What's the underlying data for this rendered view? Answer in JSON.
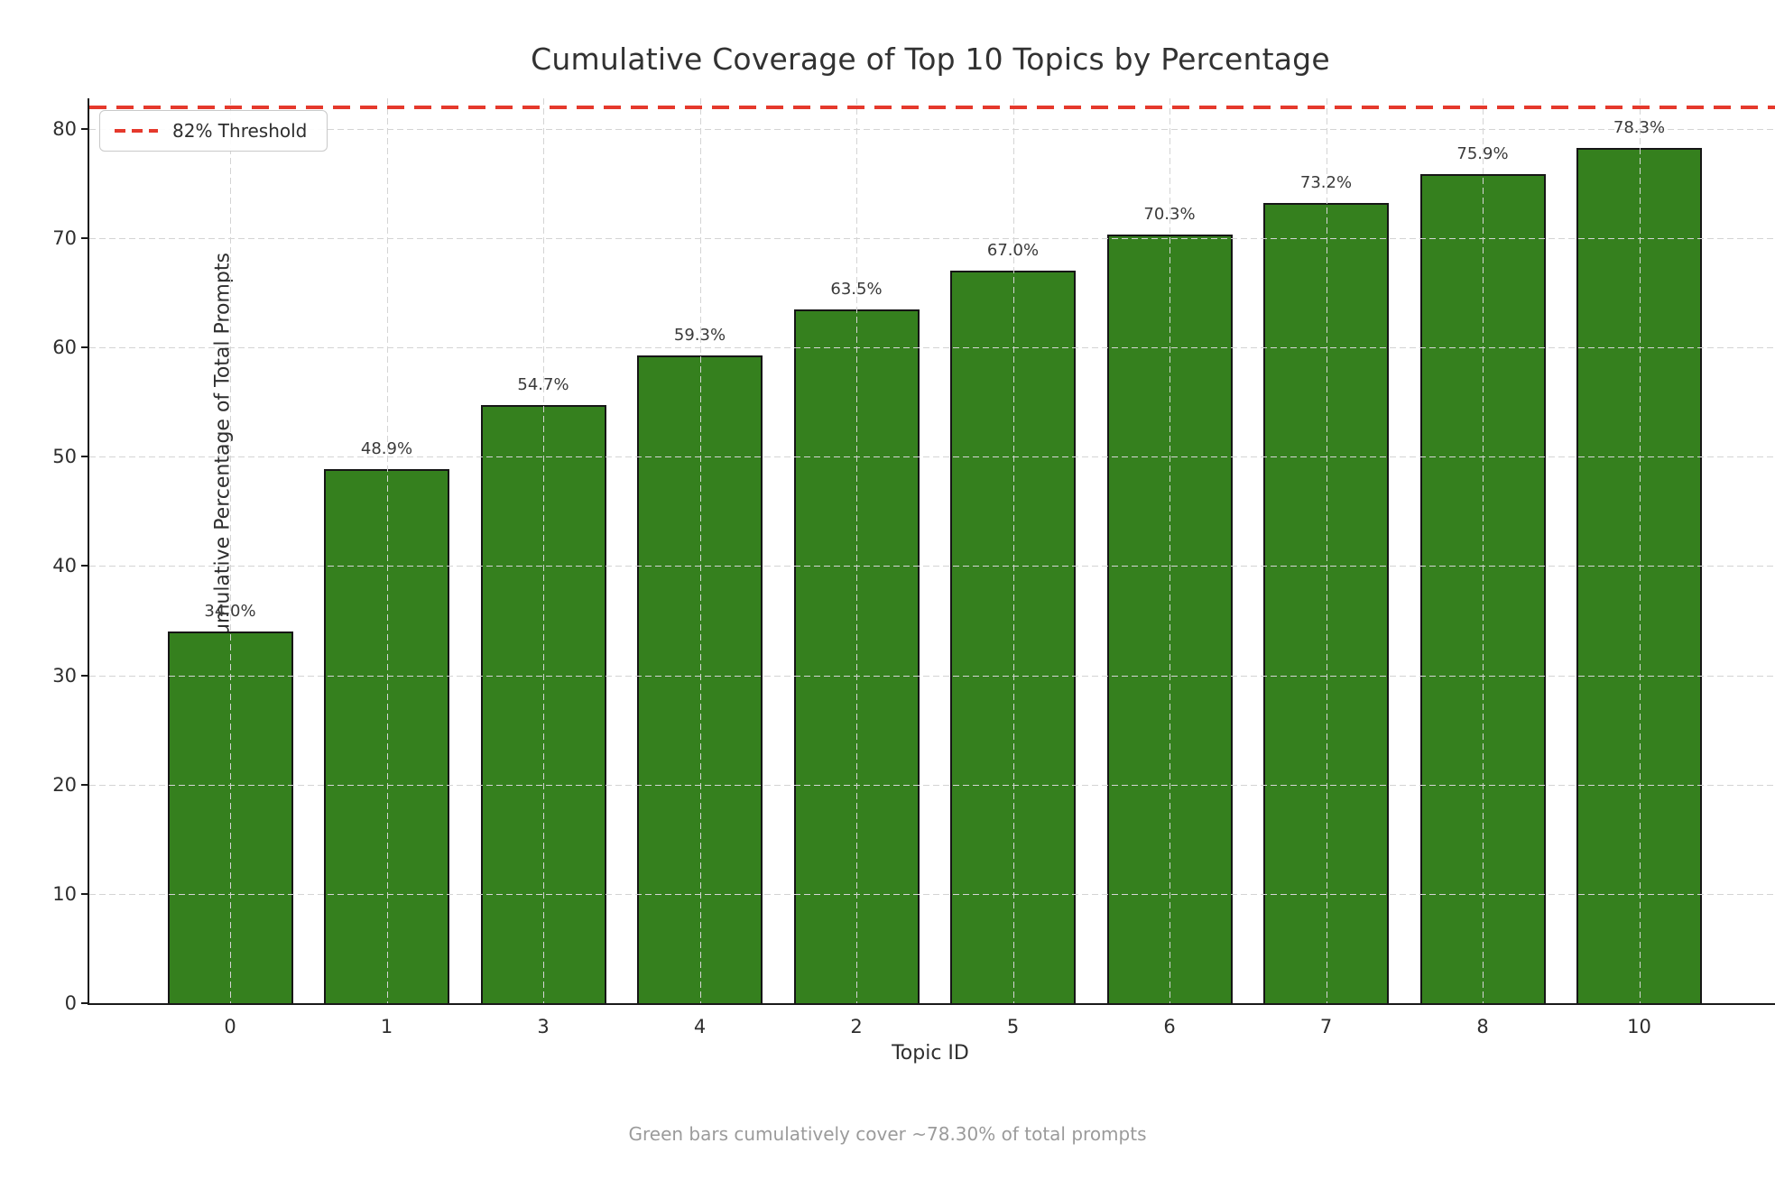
{
  "chart_data": {
    "type": "bar",
    "title": "Cumulative Coverage of Top 10 Topics by Percentage",
    "xlabel": "Topic ID",
    "ylabel": "Cumulative Percentage of Total Prompts",
    "categories": [
      "0",
      "1",
      "3",
      "4",
      "2",
      "5",
      "6",
      "7",
      "8",
      "10"
    ],
    "values": [
      34.0,
      48.9,
      54.7,
      59.3,
      63.5,
      67.0,
      70.3,
      73.2,
      75.9,
      78.3
    ],
    "bar_labels": [
      "34.0%",
      "48.9%",
      "54.7%",
      "59.3%",
      "63.5%",
      "67.0%",
      "70.3%",
      "73.2%",
      "75.9%",
      "78.3%"
    ],
    "threshold": {
      "value": 82,
      "label": "82% Threshold"
    },
    "yticks": [
      0,
      10,
      20,
      30,
      40,
      50,
      60,
      70,
      80
    ],
    "ylim": [
      0,
      82.8
    ],
    "grid": true,
    "grid_over_bars": true,
    "legend_position": "upper left",
    "caption": "Green bars cumulatively cover ~78.30% of total prompts",
    "colors": {
      "bar_fill": "#35801e",
      "bar_edge": "#161616",
      "threshold_red": "#e5392c",
      "grid": "#d4d4d4",
      "caption_gray": "#9b9b9b"
    }
  }
}
